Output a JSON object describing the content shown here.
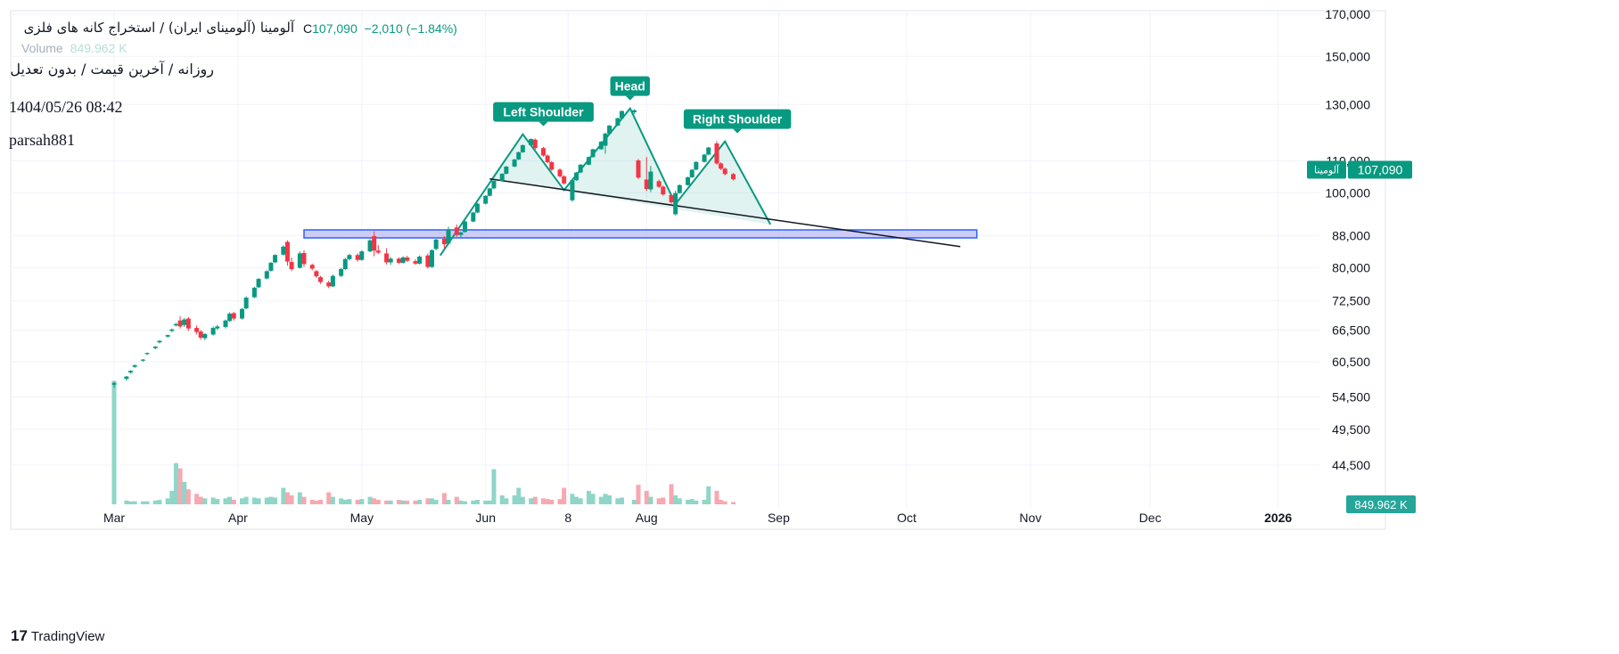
{
  "legend": {
    "symbol": "آلومینا (آلومینای ایران) / استخراج کانه های فلزی",
    "close_prefix": "C",
    "close": "107,090",
    "change": "−2,010 (−1.84%)",
    "volume_label": "Volume",
    "volume_value": "849.962 K"
  },
  "subtitle": "روزانه / آخرین قیمت / بدون تعدیل",
  "timestamp": "1404/05/26 08:42",
  "author": "parsah881",
  "brand": "TradingView",
  "colors": {
    "up": "#089981",
    "down": "#f23645",
    "up_vol": "#8fd6c8",
    "down_vol": "#f7a8b0",
    "pattern": "#089981",
    "zone_fill": "#c5c3f5",
    "zone_stroke": "#2962ff"
  },
  "chart_data": {
    "type": "candlestick",
    "y_scale": "log",
    "ylim": [
      43000,
      172000
    ],
    "y_ticks": [
      "170,000",
      "150,000",
      "130,000",
      "110,000",
      "100,000",
      "88,000",
      "80,000",
      "72,500",
      "66,500",
      "60,500",
      "54,500",
      "49,500",
      "44,500"
    ],
    "x_ticks": [
      "Mar",
      "Apr",
      "May",
      "Jun",
      "8",
      "Aug",
      "Sep",
      "Oct",
      "Nov",
      "Dec",
      "2026"
    ],
    "price_badge": {
      "label": "آلومینا",
      "value": "107,090"
    },
    "volume_badge": "849.962 K",
    "annotations": [
      {
        "text": "Left Shoulder",
        "x": "2025-06-13",
        "y": 119000
      },
      {
        "text": "Head",
        "x": "2025-07-04",
        "y": 128500
      },
      {
        "text": "Right Shoulder",
        "x": "2025-07-30",
        "y": 116500
      }
    ],
    "candles": [
      {
        "date": "2025-03-01",
        "o": 56500,
        "h": 57000,
        "l": 56000,
        "c": 56800,
        "v": 165
      },
      {
        "date": "2025-03-04",
        "o": 57500,
        "h": 58000,
        "l": 57200,
        "c": 57900,
        "v": 5
      },
      {
        "date": "2025-03-05",
        "o": 58600,
        "h": 59000,
        "l": 58400,
        "c": 58900,
        "v": 4
      },
      {
        "date": "2025-03-06",
        "o": 59600,
        "h": 60000,
        "l": 59400,
        "c": 59900,
        "v": 4
      },
      {
        "date": "2025-03-08",
        "o": 60700,
        "h": 61000,
        "l": 60500,
        "c": 60900,
        "v": 4
      },
      {
        "date": "2025-03-09",
        "o": 61900,
        "h": 62200,
        "l": 61700,
        "c": 62100,
        "v": 4
      },
      {
        "date": "2025-03-11",
        "o": 63000,
        "h": 63400,
        "l": 62800,
        "c": 63300,
        "v": 5
      },
      {
        "date": "2025-03-12",
        "o": 64100,
        "h": 64500,
        "l": 63900,
        "c": 64400,
        "v": 6
      },
      {
        "date": "2025-03-14",
        "o": 65200,
        "h": 65600,
        "l": 65000,
        "c": 65500,
        "v": 8
      },
      {
        "date": "2025-03-15",
        "o": 66300,
        "h": 66800,
        "l": 66100,
        "c": 66600,
        "v": 18
      },
      {
        "date": "2025-03-16",
        "o": 67400,
        "h": 67900,
        "l": 67200,
        "c": 67700,
        "v": 55
      },
      {
        "date": "2025-03-17",
        "o": 68400,
        "h": 69300,
        "l": 66800,
        "c": 67200,
        "v": 48
      },
      {
        "date": "2025-03-18",
        "o": 67500,
        "h": 68900,
        "l": 67100,
        "c": 68600,
        "v": 30
      },
      {
        "date": "2025-03-19",
        "o": 68800,
        "h": 69100,
        "l": 66300,
        "c": 66800,
        "v": 20
      },
      {
        "date": "2025-03-21",
        "o": 66900,
        "h": 67400,
        "l": 65600,
        "c": 66100,
        "v": 14
      },
      {
        "date": "2025-03-22",
        "o": 66200,
        "h": 66500,
        "l": 64600,
        "c": 65000,
        "v": 10
      },
      {
        "date": "2025-03-23",
        "o": 64900,
        "h": 65900,
        "l": 64500,
        "c": 65700,
        "v": 8
      },
      {
        "date": "2025-03-25",
        "o": 65600,
        "h": 67200,
        "l": 65400,
        "c": 66900,
        "v": 9
      },
      {
        "date": "2025-03-26",
        "o": 66800,
        "h": 67500,
        "l": 66500,
        "c": 67200,
        "v": 7
      },
      {
        "date": "2025-03-28",
        "o": 67100,
        "h": 68600,
        "l": 66800,
        "c": 68400,
        "v": 8
      },
      {
        "date": "2025-03-29",
        "o": 68300,
        "h": 70100,
        "l": 68100,
        "c": 69800,
        "v": 10
      },
      {
        "date": "2025-03-30",
        "o": 69900,
        "h": 70200,
        "l": 68400,
        "c": 68800,
        "v": 6
      },
      {
        "date": "2025-04-01",
        "o": 68800,
        "h": 71000,
        "l": 68600,
        "c": 70800,
        "v": 8
      },
      {
        "date": "2025-04-02",
        "o": 70900,
        "h": 73500,
        "l": 70700,
        "c": 73200,
        "v": 10
      },
      {
        "date": "2025-04-04",
        "o": 73300,
        "h": 75600,
        "l": 73100,
        "c": 75400,
        "v": 9
      },
      {
        "date": "2025-04-05",
        "o": 75500,
        "h": 77600,
        "l": 75300,
        "c": 77400,
        "v": 8
      },
      {
        "date": "2025-04-07",
        "o": 77500,
        "h": 79400,
        "l": 77300,
        "c": 79200,
        "v": 9
      },
      {
        "date": "2025-04-08",
        "o": 79300,
        "h": 81400,
        "l": 79100,
        "c": 81200,
        "v": 10
      },
      {
        "date": "2025-04-09",
        "o": 81300,
        "h": 83300,
        "l": 81100,
        "c": 83100,
        "v": 9
      },
      {
        "date": "2025-04-11",
        "o": 83200,
        "h": 85500,
        "l": 83000,
        "c": 85200,
        "v": 22
      },
      {
        "date": "2025-04-12",
        "o": 86400,
        "h": 86800,
        "l": 80500,
        "c": 81500,
        "v": 16
      },
      {
        "date": "2025-04-13",
        "o": 81400,
        "h": 82500,
        "l": 79200,
        "c": 79700,
        "v": 12
      },
      {
        "date": "2025-04-15",
        "o": 80000,
        "h": 84000,
        "l": 79800,
        "c": 83500,
        "v": 16
      },
      {
        "date": "2025-04-16",
        "o": 83600,
        "h": 84300,
        "l": 80200,
        "c": 80900,
        "v": 10
      },
      {
        "date": "2025-04-18",
        "o": 80700,
        "h": 81000,
        "l": 79400,
        "c": 79800,
        "v": 6
      },
      {
        "date": "2025-04-19",
        "o": 79200,
        "h": 79500,
        "l": 77600,
        "c": 78000,
        "v": 5
      },
      {
        "date": "2025-04-20",
        "o": 77800,
        "h": 78100,
        "l": 76300,
        "c": 76700,
        "v": 6
      },
      {
        "date": "2025-04-22",
        "o": 76600,
        "h": 77000,
        "l": 75300,
        "c": 75700,
        "v": 16
      },
      {
        "date": "2025-04-23",
        "o": 75700,
        "h": 78400,
        "l": 75500,
        "c": 78100,
        "v": 10
      },
      {
        "date": "2025-04-25",
        "o": 78100,
        "h": 80000,
        "l": 77800,
        "c": 79700,
        "v": 8
      },
      {
        "date": "2025-04-26",
        "o": 79700,
        "h": 82400,
        "l": 79500,
        "c": 82100,
        "v": 6
      },
      {
        "date": "2025-04-27",
        "o": 82100,
        "h": 83400,
        "l": 81800,
        "c": 83100,
        "v": 7
      },
      {
        "date": "2025-04-29",
        "o": 83100,
        "h": 83500,
        "l": 81500,
        "c": 81900,
        "v": 6
      },
      {
        "date": "2025-04-30",
        "o": 81900,
        "h": 84300,
        "l": 81700,
        "c": 84000,
        "v": 7
      },
      {
        "date": "2025-05-02",
        "o": 84000,
        "h": 87100,
        "l": 83800,
        "c": 86800,
        "v": 10
      },
      {
        "date": "2025-05-03",
        "o": 87900,
        "h": 89200,
        "l": 82800,
        "c": 84200,
        "v": 8
      },
      {
        "date": "2025-05-04",
        "o": 84200,
        "h": 85600,
        "l": 83300,
        "c": 83700,
        "v": 6
      },
      {
        "date": "2025-05-06",
        "o": 83500,
        "h": 84800,
        "l": 80800,
        "c": 81300,
        "v": 5
      },
      {
        "date": "2025-05-07",
        "o": 81300,
        "h": 82600,
        "l": 80700,
        "c": 82200,
        "v": 5
      },
      {
        "date": "2025-05-09",
        "o": 82200,
        "h": 82500,
        "l": 80900,
        "c": 81200,
        "v": 6
      },
      {
        "date": "2025-05-10",
        "o": 81200,
        "h": 82800,
        "l": 81000,
        "c": 82500,
        "v": 5
      },
      {
        "date": "2025-05-11",
        "o": 82500,
        "h": 82900,
        "l": 81400,
        "c": 81700,
        "v": 5
      },
      {
        "date": "2025-05-13",
        "o": 81600,
        "h": 82100,
        "l": 80700,
        "c": 81000,
        "v": 5
      },
      {
        "date": "2025-05-14",
        "o": 81000,
        "h": 83000,
        "l": 80800,
        "c": 82700,
        "v": 6
      },
      {
        "date": "2025-05-16",
        "o": 83000,
        "h": 83500,
        "l": 79800,
        "c": 80200,
        "v": 8
      },
      {
        "date": "2025-05-17",
        "o": 80200,
        "h": 84500,
        "l": 80000,
        "c": 84300,
        "v": 8
      },
      {
        "date": "2025-05-18",
        "o": 84600,
        "h": 87200,
        "l": 84300,
        "c": 87000,
        "v": 6
      },
      {
        "date": "2025-05-20",
        "o": 87200,
        "h": 87900,
        "l": 84700,
        "c": 85800,
        "v": 15
      },
      {
        "date": "2025-05-21",
        "o": 86000,
        "h": 90400,
        "l": 85600,
        "c": 89600,
        "v": 6
      },
      {
        "date": "2025-05-23",
        "o": 90200,
        "h": 91000,
        "l": 87700,
        "c": 88200,
        "v": 10
      },
      {
        "date": "2025-05-24",
        "o": 88200,
        "h": 89000,
        "l": 87600,
        "c": 88900,
        "v": 5
      },
      {
        "date": "2025-05-25",
        "o": 89000,
        "h": 92000,
        "l": 88800,
        "c": 91800,
        "v": 4
      },
      {
        "date": "2025-05-27",
        "o": 91800,
        "h": 94500,
        "l": 91600,
        "c": 94300,
        "v": 5
      },
      {
        "date": "2025-05-28",
        "o": 94300,
        "h": 97000,
        "l": 94100,
        "c": 96800,
        "v": 6
      },
      {
        "date": "2025-05-30",
        "o": 96800,
        "h": 99300,
        "l": 96600,
        "c": 99100,
        "v": 5
      },
      {
        "date": "2025-05-31",
        "o": 99100,
        "h": 101500,
        "l": 98900,
        "c": 101300,
        "v": 5
      },
      {
        "date": "2025-06-01",
        "o": 101300,
        "h": 103800,
        "l": 101100,
        "c": 103600,
        "v": 47
      },
      {
        "date": "2025-06-03",
        "o": 103600,
        "h": 106000,
        "l": 103400,
        "c": 105800,
        "v": 12
      },
      {
        "date": "2025-06-04",
        "o": 105800,
        "h": 108300,
        "l": 105600,
        "c": 108100,
        "v": 8
      },
      {
        "date": "2025-06-06",
        "o": 108100,
        "h": 110600,
        "l": 107900,
        "c": 110400,
        "v": 12
      },
      {
        "date": "2025-06-07",
        "o": 110400,
        "h": 113000,
        "l": 110200,
        "c": 112800,
        "v": 22
      },
      {
        "date": "2025-06-08",
        "o": 112800,
        "h": 115400,
        "l": 112600,
        "c": 115200,
        "v": 10
      },
      {
        "date": "2025-06-10",
        "o": 115200,
        "h": 117500,
        "l": 115000,
        "c": 117300,
        "v": 8
      },
      {
        "date": "2025-06-11",
        "o": 117100,
        "h": 117500,
        "l": 113700,
        "c": 114200,
        "v": 10
      },
      {
        "date": "2025-06-13",
        "o": 114200,
        "h": 114600,
        "l": 111300,
        "c": 111700,
        "v": 8
      },
      {
        "date": "2025-06-14",
        "o": 111700,
        "h": 112100,
        "l": 109100,
        "c": 109500,
        "v": 7
      },
      {
        "date": "2025-06-15",
        "o": 109500,
        "h": 109900,
        "l": 106700,
        "c": 107100,
        "v": 6
      },
      {
        "date": "2025-06-17",
        "o": 107100,
        "h": 107500,
        "l": 104600,
        "c": 105000,
        "v": 7
      },
      {
        "date": "2025-06-18",
        "o": 105000,
        "h": 105400,
        "l": 102400,
        "c": 102800,
        "v": 22
      },
      {
        "date": "2025-06-20",
        "o": 97800,
        "h": 104300,
        "l": 97400,
        "c": 103800,
        "v": 14
      },
      {
        "date": "2025-06-21",
        "o": 103800,
        "h": 106400,
        "l": 103600,
        "c": 106200,
        "v": 10
      },
      {
        "date": "2025-06-22",
        "o": 106200,
        "h": 108900,
        "l": 106000,
        "c": 108700,
        "v": 8
      },
      {
        "date": "2025-06-24",
        "o": 108700,
        "h": 111400,
        "l": 108500,
        "c": 111200,
        "v": 18
      },
      {
        "date": "2025-06-25",
        "o": 111200,
        "h": 114000,
        "l": 111000,
        "c": 113800,
        "v": 14
      },
      {
        "date": "2025-06-27",
        "o": 113800,
        "h": 116600,
        "l": 113600,
        "c": 116400,
        "v": 10
      },
      {
        "date": "2025-06-28",
        "o": 115000,
        "h": 119600,
        "l": 112300,
        "c": 119200,
        "v": 14
      },
      {
        "date": "2025-06-29",
        "o": 119200,
        "h": 122300,
        "l": 119000,
        "c": 122100,
        "v": 12
      },
      {
        "date": "2025-07-01",
        "o": 122100,
        "h": 125000,
        "l": 121900,
        "c": 124800,
        "v": 8
      },
      {
        "date": "2025-07-02",
        "o": 124800,
        "h": 127700,
        "l": 124600,
        "c": 127500,
        "v": 9
      },
      {
        "date": "2025-07-05",
        "o": 127000,
        "h": 128200,
        "l": 126300,
        "c": 127800,
        "v": 6
      },
      {
        "date": "2025-07-06",
        "o": 110100,
        "h": 110600,
        "l": 104100,
        "c": 104600,
        "v": 26
      },
      {
        "date": "2025-07-08",
        "o": 104000,
        "h": 111200,
        "l": 100500,
        "c": 101100,
        "v": 18
      },
      {
        "date": "2025-07-09",
        "o": 101000,
        "h": 108300,
        "l": 100200,
        "c": 106500,
        "v": 10
      },
      {
        "date": "2025-07-11",
        "o": 103500,
        "h": 104000,
        "l": 101400,
        "c": 101800,
        "v": 8
      },
      {
        "date": "2025-07-12",
        "o": 101800,
        "h": 102200,
        "l": 99100,
        "c": 99500,
        "v": 9
      },
      {
        "date": "2025-07-14",
        "o": 99300,
        "h": 99700,
        "l": 96800,
        "c": 97200,
        "v": 27
      },
      {
        "date": "2025-07-15",
        "o": 93800,
        "h": 100600,
        "l": 93500,
        "c": 99900,
        "v": 12
      },
      {
        "date": "2025-07-16",
        "o": 99900,
        "h": 102500,
        "l": 99700,
        "c": 102300,
        "v": 8
      },
      {
        "date": "2025-07-18",
        "o": 102300,
        "h": 104900,
        "l": 102100,
        "c": 104700,
        "v": 6
      },
      {
        "date": "2025-07-19",
        "o": 104700,
        "h": 107300,
        "l": 104500,
        "c": 107100,
        "v": 7
      },
      {
        "date": "2025-07-20",
        "o": 107100,
        "h": 109800,
        "l": 106900,
        "c": 109600,
        "v": 5
      },
      {
        "date": "2025-07-22",
        "o": 109600,
        "h": 112200,
        "l": 109400,
        "c": 112000,
        "v": 6
      },
      {
        "date": "2025-07-23",
        "o": 112000,
        "h": 114600,
        "l": 111800,
        "c": 114400,
        "v": 24
      },
      {
        "date": "2025-07-25",
        "o": 115800,
        "h": 116600,
        "l": 108700,
        "c": 109100,
        "v": 18
      },
      {
        "date": "2025-07-26",
        "o": 109100,
        "h": 109500,
        "l": 107000,
        "c": 107400,
        "v": 6
      },
      {
        "date": "2025-07-27",
        "o": 107400,
        "h": 107800,
        "l": 105300,
        "c": 105700,
        "v": 4
      },
      {
        "date": "2025-07-29",
        "o": 105700,
        "h": 106100,
        "l": 103700,
        "c": 104100,
        "v": 3
      }
    ]
  }
}
